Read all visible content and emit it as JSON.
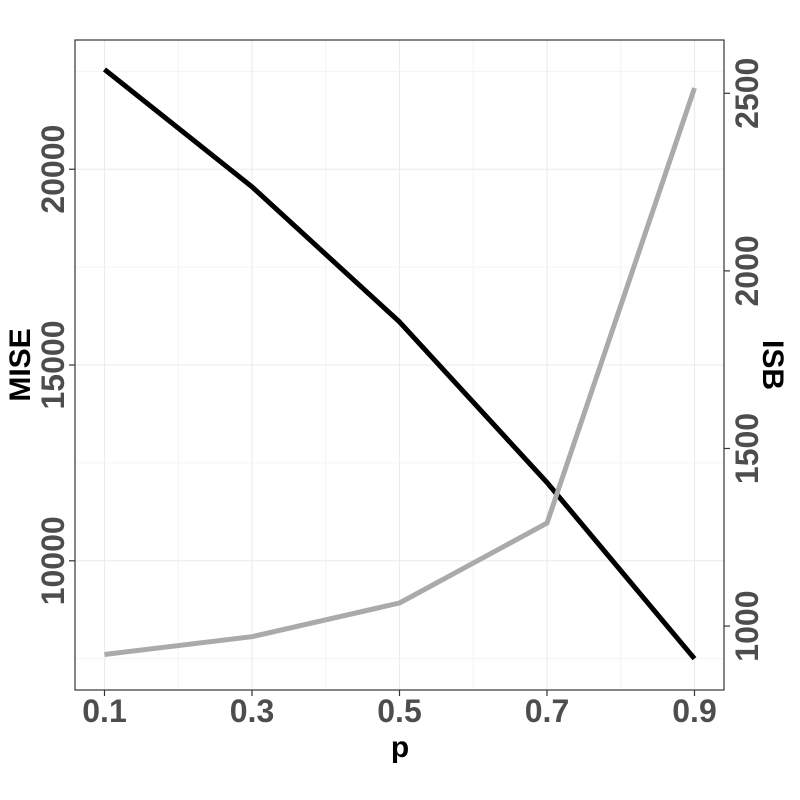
{
  "chart_data": {
    "type": "line",
    "xlabel": "p",
    "ylabel_left": "MISE",
    "ylabel_right": "ISB",
    "x": [
      0.1,
      0.3,
      0.5,
      0.7,
      0.9
    ],
    "x_ticks": [
      "0.1",
      "0.3",
      "0.5",
      "0.7",
      "0.9"
    ],
    "xlim": [
      0.06,
      0.94
    ],
    "ylim_left": [
      6700,
      23300
    ],
    "ylim_right": [
      820,
      2650
    ],
    "y_ticks_left": [
      "10000",
      "15000",
      "20000"
    ],
    "y_ticks_right": [
      "1000",
      "1500",
      "2000",
      "2500"
    ],
    "grid": true,
    "series": [
      {
        "axis": "left",
        "color": "#000000",
        "values": [
          22550,
          19550,
          16100,
          12000,
          7500
        ]
      },
      {
        "axis": "right",
        "color": "#aaaaaa",
        "values": [
          920,
          970,
          1065,
          1290,
          2515
        ]
      }
    ]
  }
}
